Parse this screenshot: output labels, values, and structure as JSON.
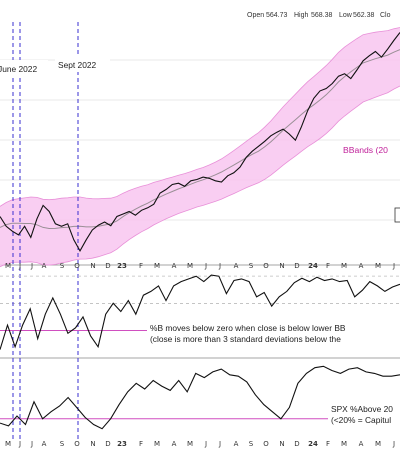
{
  "header": {
    "open_label": "Open",
    "open_value": "564.73",
    "high_label": "High",
    "high_value": "568.38",
    "low_label": "Low",
    "low_value": "562.38",
    "close_label": "Clo"
  },
  "colors": {
    "price": "#111111",
    "band_fill": "#f8c6f0",
    "band_edge": "#e88fd8",
    "moving_average": "#9a8f96",
    "threshold_line": "#d04fc0",
    "event_line": "#3a2fd0",
    "label_text": "#1a1a9a",
    "bbands_label": "#c0209a",
    "grid": "#e2e2e2"
  },
  "chart_data": {
    "type": "line",
    "panels": [
      {
        "id": "price",
        "series": [
          {
            "values": [
              64,
              48,
              40,
              34,
              48,
              30,
              60,
              82,
              72,
              52,
              48,
              52,
              26,
              8,
              26,
              42,
              50,
              55,
              49,
              64,
              68,
              72,
              66,
              74,
              78,
              84,
              102,
              108,
              116,
              118,
              113,
              122,
              124,
              128,
              126,
              122,
              120,
              130,
              135,
              144,
              160,
              170,
              178,
              186,
              195,
              201,
              206,
              198,
              188,
              210,
              236,
              256,
              268,
              272,
              280,
              292,
              296,
              288,
              302,
              317,
              325,
              332,
              323,
              336,
              350,
              363
            ]
          }
        ],
        "bollinger_bands": {
          "label": "BBands (20"
        },
        "event_markers": [
          "June 2022",
          "Sept 2022"
        ]
      },
      {
        "id": "percent_b",
        "series": [
          {
            "values": [
              -0.35,
              0.1,
              -0.3,
              0.1,
              0.4,
              -0.15,
              0.3,
              0.6,
              0.3,
              -0.05,
              0.05,
              0.25,
              -0.1,
              -0.3,
              0.3,
              0.5,
              0.35,
              0.55,
              0.3,
              0.65,
              0.72,
              0.82,
              0.55,
              0.82,
              0.9,
              0.95,
              1.0,
              0.9,
              1.02,
              1.0,
              0.68,
              0.92,
              0.95,
              0.9,
              0.62,
              0.7,
              0.45,
              0.62,
              0.72,
              0.88,
              0.96,
              0.9,
              0.98,
              0.92,
              0.95,
              0.9,
              0.92,
              0.62,
              0.74,
              0.9,
              0.82,
              0.72,
              0.8,
              0.85
            ]
          }
        ],
        "threshold": 0,
        "annotation": [
          "%B moves below zero when close is below lower BB",
          "(close is more than 3 standard deviations below the"
        ]
      },
      {
        "id": "spx_percent_above",
        "series": [
          {
            "values": [
              14,
              10,
              24,
              12,
              44,
              20,
              30,
              38,
              50,
              36,
              22,
              12,
              6,
              20,
              40,
              58,
              70,
              62,
              74,
              66,
              60,
              74,
              58,
              84,
              78,
              86,
              90,
              82,
              80,
              72,
              54,
              40,
              30,
              20,
              36,
              70,
              84,
              92,
              94,
              88,
              84,
              90,
              92,
              86,
              84,
              80,
              80,
              82
            ]
          }
        ],
        "threshold": 20,
        "annotation": [
          "SPX %Above 20",
          "(<20% = Capitul"
        ]
      }
    ],
    "x_tick_labels": [
      "M",
      "J",
      "J",
      "A",
      "S",
      "O",
      "N",
      "D",
      "23",
      "F",
      "M",
      "A",
      "M",
      "J",
      "J",
      "A",
      "S",
      "O",
      "N",
      "D",
      "24",
      "F",
      "M",
      "A",
      "M",
      "J",
      "J"
    ],
    "event_markers": [
      "June 2022",
      "Sept 2022"
    ],
    "legend": "none",
    "grid": true
  }
}
